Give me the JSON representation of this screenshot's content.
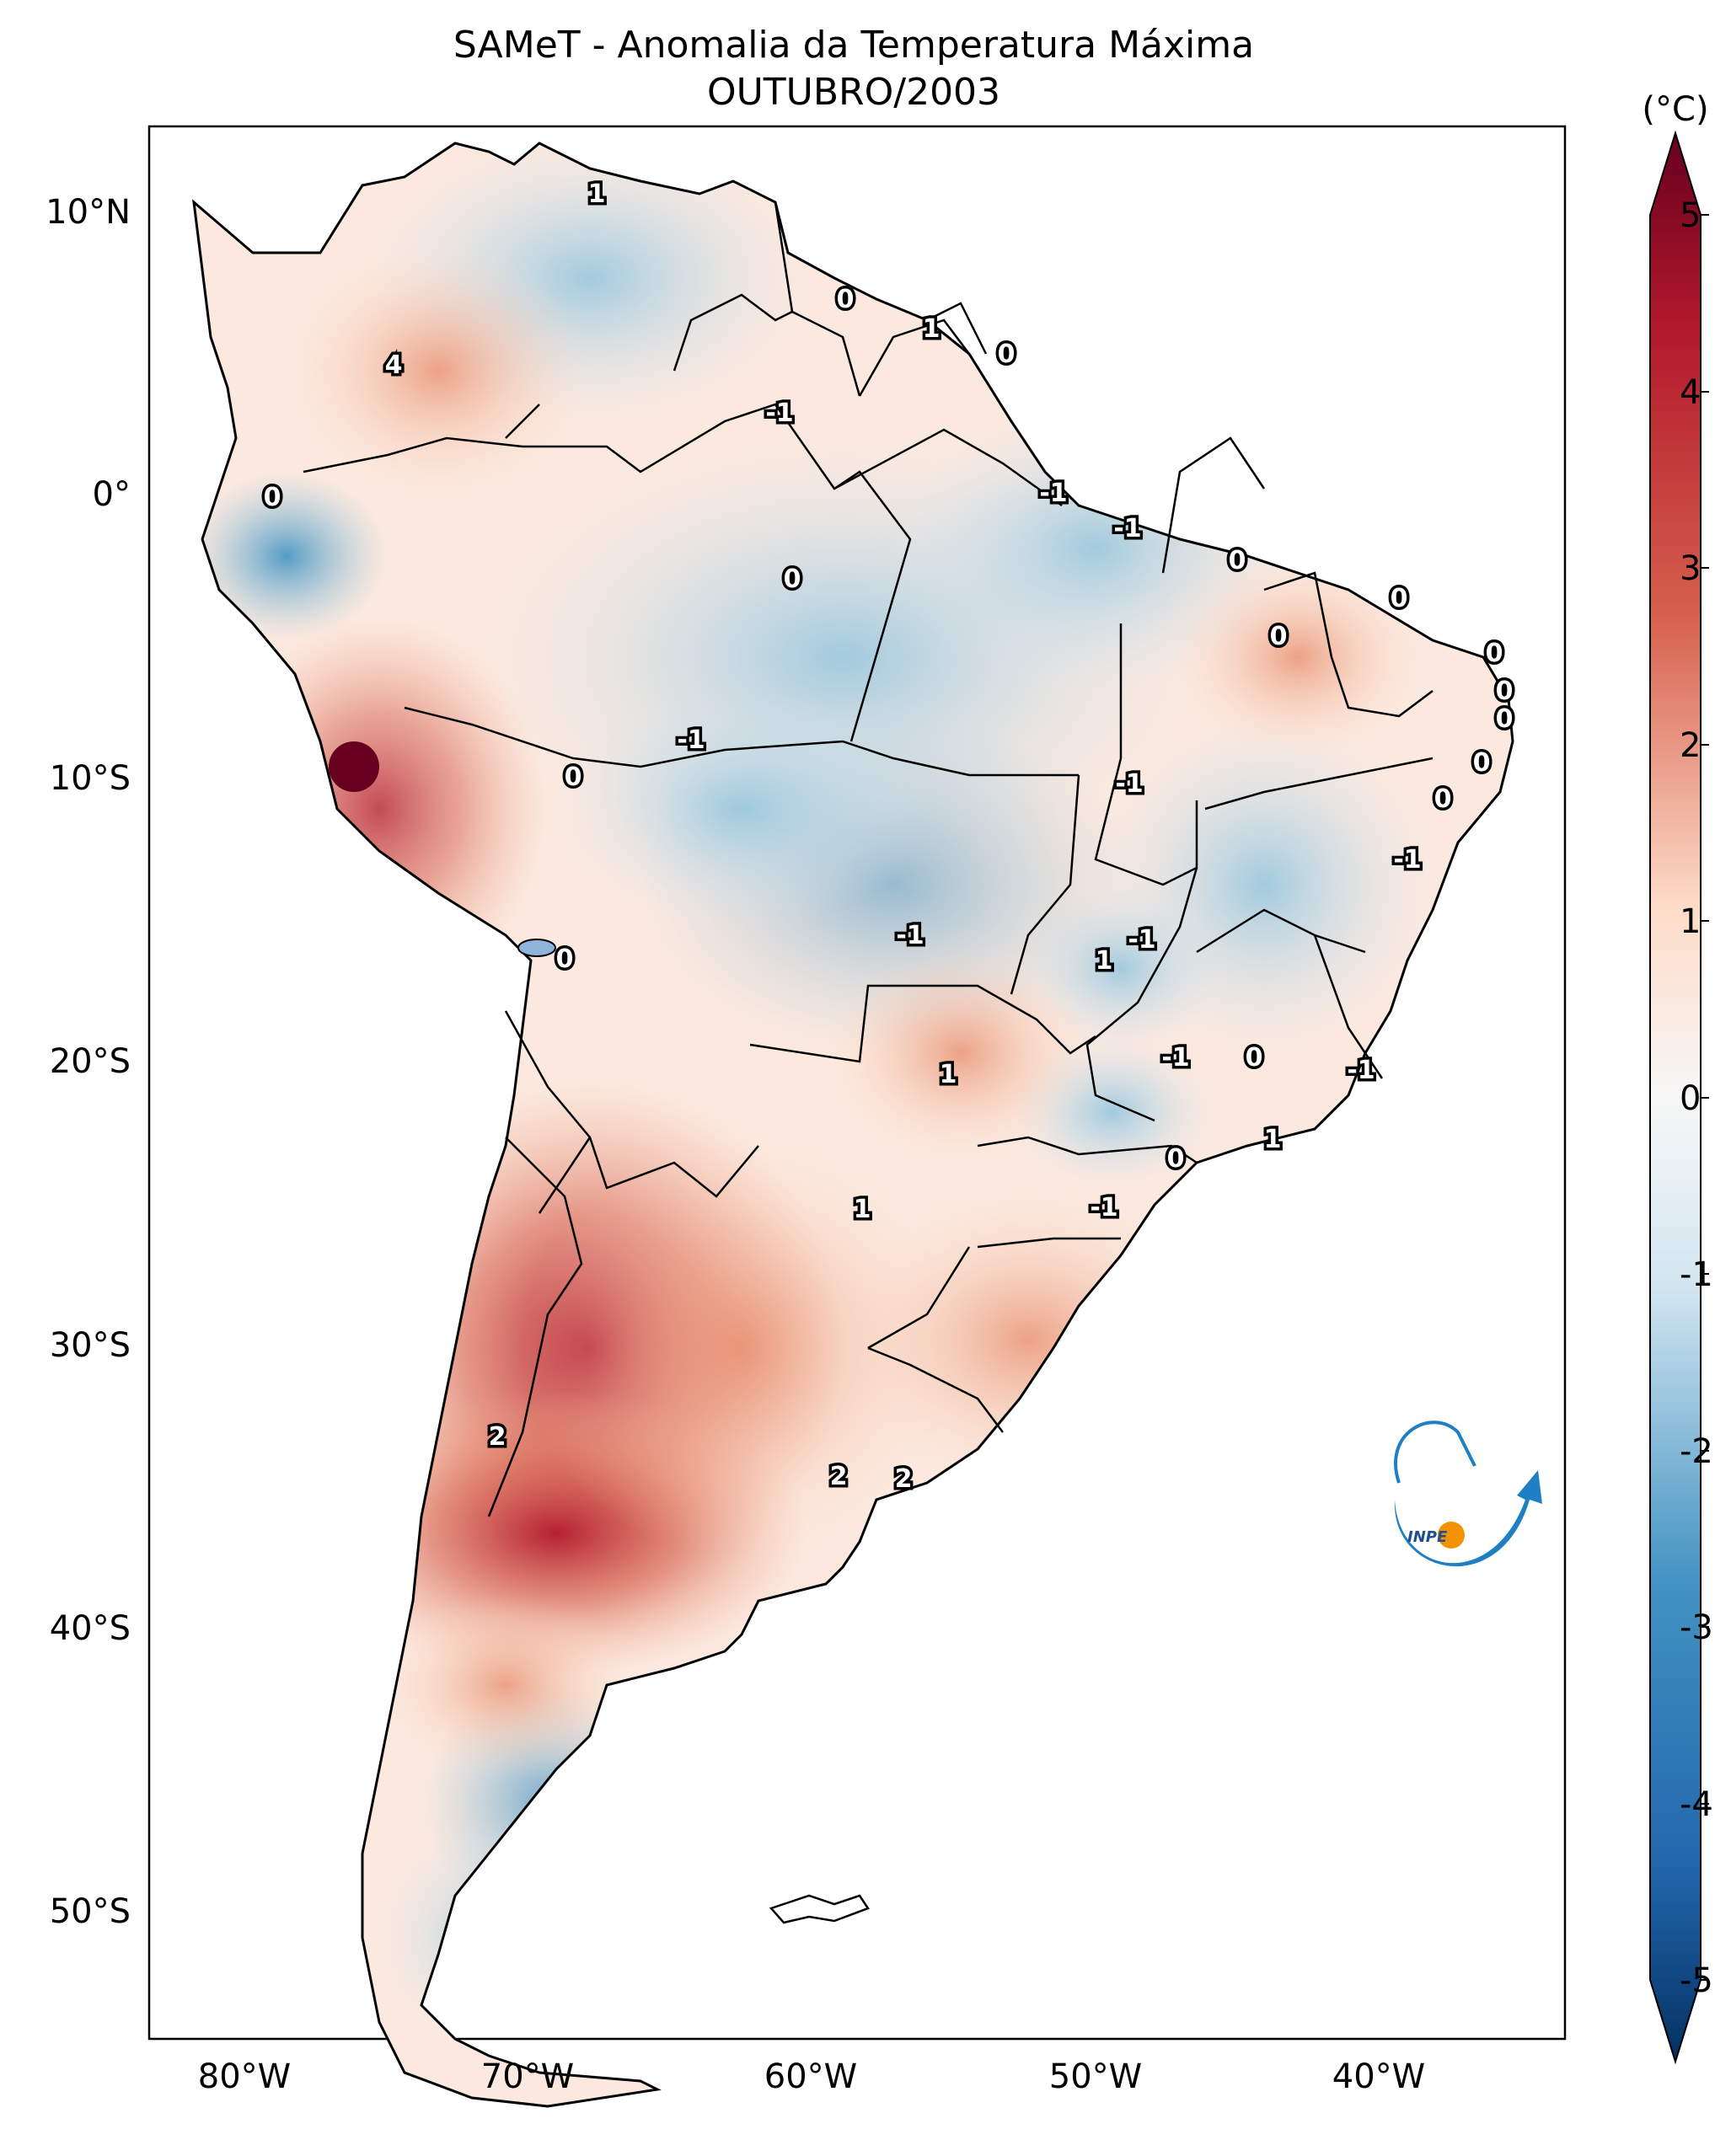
{
  "title": {
    "line1": "SAMeT - Anomalia da Temperatura Máxima",
    "line2": "OUTUBRO/2003"
  },
  "colorbar": {
    "unit": "(°C)",
    "ticks": [
      "5",
      "4",
      "3",
      "2",
      "1",
      "0",
      "-1",
      "-2",
      "-3",
      "-4",
      "-5"
    ],
    "range": [
      -5,
      5
    ],
    "colors": {
      "low": "#053061",
      "mid_low": "#4393c3",
      "zero": "#f7f7f7",
      "mid_high": "#d6604d",
      "high": "#67001f"
    }
  },
  "axes": {
    "lat_labels": [
      "10°N",
      "0°",
      "10°S",
      "20°S",
      "30°S",
      "40°S",
      "50°S"
    ],
    "lon_labels": [
      "80°W",
      "70°W",
      "60°W",
      "50°W",
      "40°W"
    ],
    "lon_range": [
      -83,
      -33
    ],
    "lat_range": [
      -56,
      13
    ]
  },
  "contour_labels": [
    "1",
    "0",
    "1",
    "0",
    "4",
    "-1",
    "0",
    "-1",
    "-1",
    "0",
    "0",
    "0",
    "0",
    "0",
    "0",
    "0",
    "0",
    "-1",
    "-1",
    "0",
    "0",
    "-1",
    "-1",
    "-1",
    "1",
    "-1",
    "0",
    "-1",
    "0",
    "1",
    "1",
    "-1",
    "0",
    "1",
    "2",
    "2",
    "2"
  ],
  "logo": {
    "text": "INPE"
  },
  "chart_data": {
    "type": "heatmap",
    "title": "SAMeT - Anomalia da Temperatura Máxima",
    "subtitle": "OUTUBRO/2003",
    "variable": "Maximum temperature anomaly",
    "units": "°C",
    "color_range": [
      -5,
      5
    ],
    "xlabel": "",
    "ylabel": "",
    "xlim": [
      "83°W",
      "33°W"
    ],
    "ylim": [
      "56°S",
      "13°N"
    ]
  }
}
